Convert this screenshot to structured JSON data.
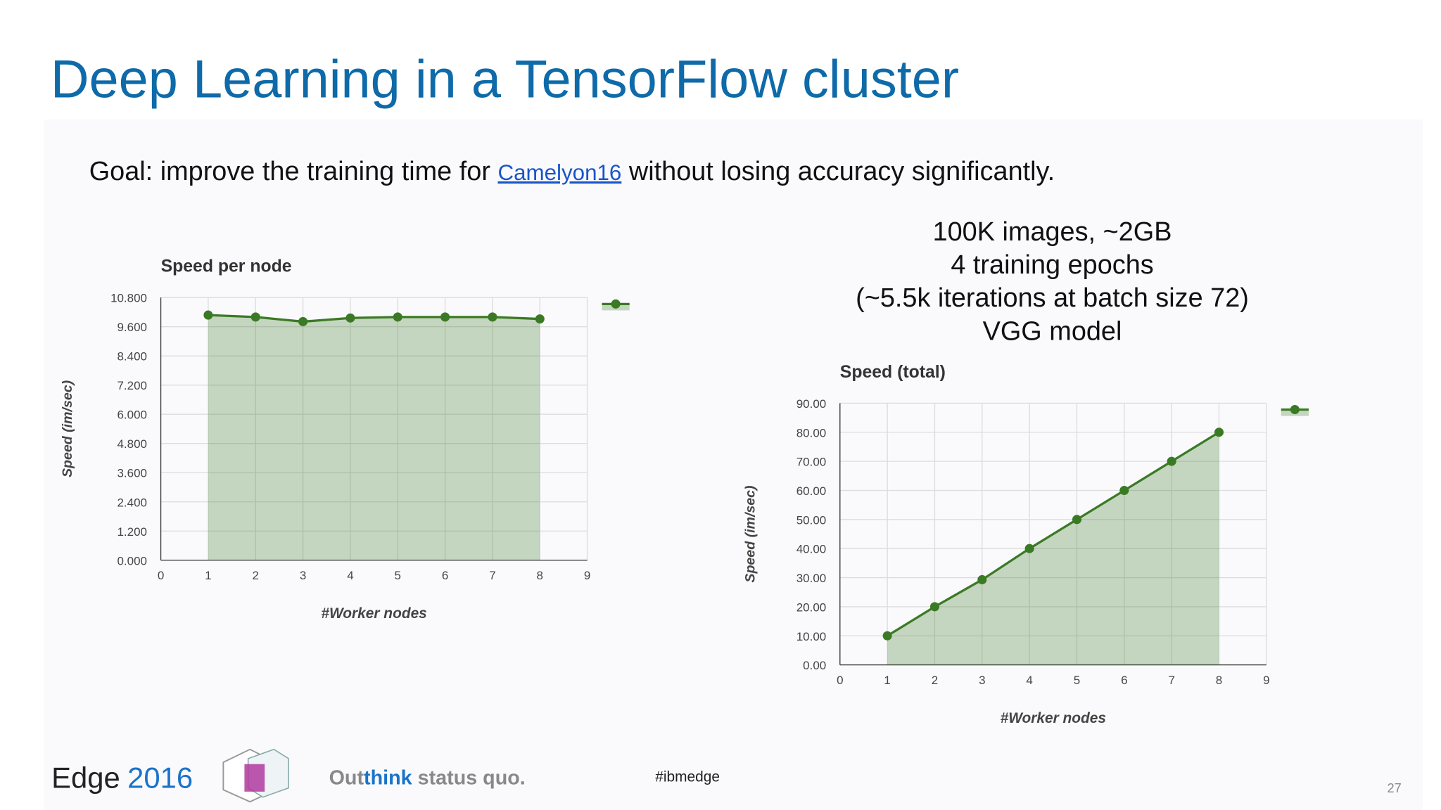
{
  "title": "Deep Learning in a TensorFlow cluster",
  "goal": {
    "before": "Goal: improve the training time for ",
    "link": "Camelyon16",
    "after": " without losing accuracy significantly."
  },
  "notes": [
    "100K images, ~2GB",
    "4 training epochs",
    "(~5.5k iterations at batch size 72)",
    "VGG model"
  ],
  "chart_data": [
    {
      "type": "area",
      "title": "Speed per node",
      "x_label": "#Worker nodes",
      "y_label": "Speed (im/sec)",
      "x": [
        1,
        2,
        3,
        4,
        5,
        6,
        7,
        8
      ],
      "series": [
        {
          "color": "#3b7a24",
          "values": [
            10.08,
            10.0,
            9.81,
            9.96,
            10.0,
            10.0,
            10.0,
            9.92
          ]
        }
      ],
      "xlim": [
        0,
        9
      ],
      "xticks": [
        0,
        1,
        2,
        3,
        4,
        5,
        6,
        7,
        8,
        9
      ],
      "ylim": [
        0,
        10.8
      ],
      "yticks": [
        {
          "value": 0,
          "label": "0.000"
        },
        {
          "value": 1.2,
          "label": "1.200"
        },
        {
          "value": 2.4,
          "label": "2.400"
        },
        {
          "value": 3.6,
          "label": "3.600"
        },
        {
          "value": 4.8,
          "label": "4.800"
        },
        {
          "value": 6.0,
          "label": "6.000"
        },
        {
          "value": 7.2,
          "label": "7.200"
        },
        {
          "value": 8.4,
          "label": "8.400"
        },
        {
          "value": 9.6,
          "label": "9.600"
        },
        {
          "value": 10.8,
          "label": "10.800"
        }
      ],
      "grid": true,
      "legend": "top-right"
    },
    {
      "type": "area",
      "title": "Speed (total)",
      "x_label": "#Worker nodes",
      "y_label": "Speed (im/sec)",
      "x": [
        1,
        2,
        3,
        4,
        5,
        6,
        7,
        8
      ],
      "series": [
        {
          "color": "#3b7a24",
          "values": [
            10,
            20,
            29.3,
            40,
            50,
            60,
            70,
            80
          ]
        }
      ],
      "xlim": [
        0,
        9
      ],
      "xticks": [
        0,
        1,
        2,
        3,
        4,
        5,
        6,
        7,
        8,
        9
      ],
      "ylim": [
        0,
        90
      ],
      "yticks": [
        {
          "value": 0,
          "label": "0.00"
        },
        {
          "value": 10,
          "label": "10.00"
        },
        {
          "value": 20,
          "label": "20.00"
        },
        {
          "value": 30,
          "label": "30.00"
        },
        {
          "value": 40,
          "label": "40.00"
        },
        {
          "value": 50,
          "label": "50.00"
        },
        {
          "value": 60,
          "label": "60.00"
        },
        {
          "value": 70,
          "label": "70.00"
        },
        {
          "value": 80,
          "label": "80.00"
        },
        {
          "value": 90,
          "label": "90.00"
        }
      ],
      "grid": true,
      "legend": "top-right"
    }
  ],
  "footer": {
    "brand": "Edge",
    "year": "2016",
    "slogan_a": "Out",
    "slogan_b": "think",
    "slogan_c": " status quo.",
    "hashtag": "#ibmedge",
    "page": "27"
  }
}
